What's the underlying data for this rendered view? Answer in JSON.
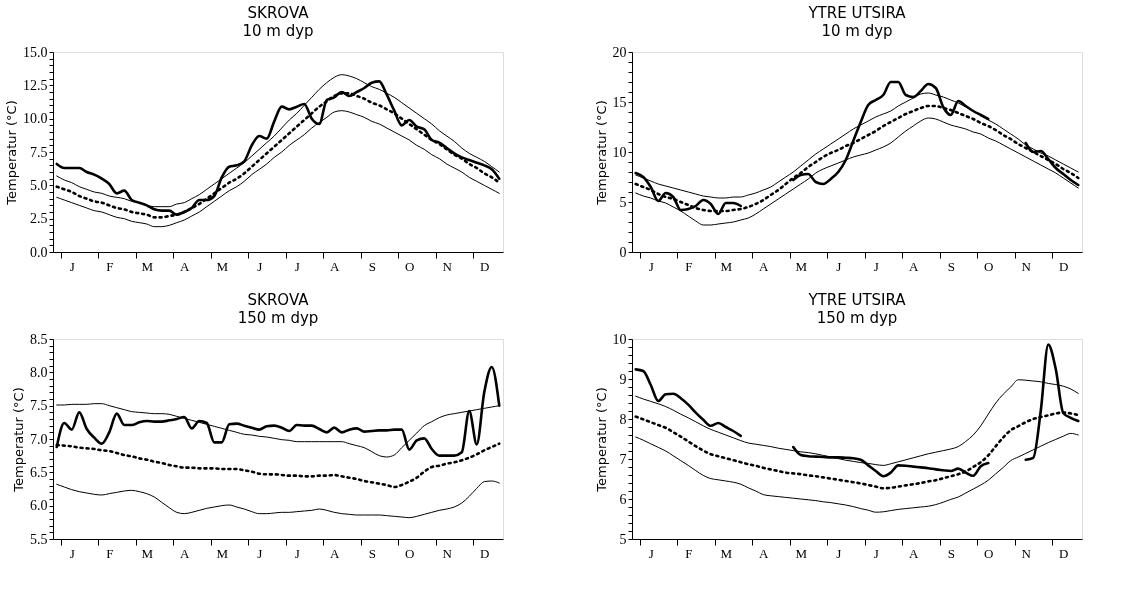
{
  "chart_data": [
    {
      "type": "line",
      "title": "SKROVA",
      "subtitle": "10 m dyp",
      "ylabel": "Temperatur (°C)",
      "grid": false,
      "categories": [
        null,
        null,
        "J",
        null,
        null,
        null,
        null,
        "F",
        null,
        null,
        null,
        null,
        "M",
        null,
        null,
        null,
        null,
        "A",
        null,
        null,
        null,
        null,
        "M",
        null,
        null,
        null,
        null,
        "J",
        null,
        null,
        null,
        null,
        "J",
        null,
        null,
        null,
        null,
        "A",
        null,
        null,
        null,
        null,
        "S",
        null,
        null,
        null,
        null,
        "O",
        null,
        null,
        null,
        null,
        "N",
        null,
        null,
        null,
        null,
        "D",
        null,
        null
      ],
      "ylim": [
        0,
        15
      ],
      "yticks": [
        {
          "value": 0,
          "label": "0.0"
        },
        {
          "value": 0.5,
          "label": null
        },
        {
          "value": 1,
          "label": null
        },
        {
          "value": 1.5,
          "label": null
        },
        {
          "value": 2,
          "label": null
        },
        2.5,
        {
          "value": 3,
          "label": null
        },
        {
          "value": 3.5,
          "label": null
        },
        {
          "value": 4,
          "label": null
        },
        {
          "value": 4.5,
          "label": null
        },
        {
          "value": 5,
          "label": "5.0"
        },
        {
          "value": 5.5,
          "label": null
        },
        {
          "value": 6,
          "label": null
        },
        {
          "value": 6.5,
          "label": null
        },
        {
          "value": 7,
          "label": null
        },
        7.5,
        {
          "value": 8,
          "label": null
        },
        {
          "value": 8.5,
          "label": null
        },
        {
          "value": 9,
          "label": null
        },
        {
          "value": 9.5,
          "label": null
        },
        {
          "value": 10,
          "label": "10.0"
        },
        {
          "value": 10.5,
          "label": null
        },
        {
          "value": 11,
          "label": null
        },
        {
          "value": 11.5,
          "label": null
        },
        {
          "value": 12,
          "label": null
        },
        12.5,
        {
          "value": 13,
          "label": null
        },
        {
          "value": 13.5,
          "label": null
        },
        {
          "value": 14,
          "label": null
        },
        {
          "value": 14.5,
          "label": null
        },
        {
          "value": 15,
          "label": "15.0"
        }
      ],
      "series": [
        {
          "color": "#000000",
          "line_style": "solid",
          "values": [
            6.6,
            6.3,
            6.3,
            6.3,
            6.0,
            5.8,
            5.5,
            5.1,
            4.4,
            4.6,
            3.9,
            3.7,
            3.5,
            3.2,
            3.1,
            3.1,
            2.8,
            3.0,
            3.3,
            3.9,
            3.9,
            4.2,
            5.6,
            6.4,
            6.5,
            6.8,
            8.0,
            8.7,
            8.5,
            9.8,
            10.9,
            10.7,
            10.9,
            11.1,
            10.0,
            9.6,
            11.4,
            11.6,
            12.0,
            11.7,
            12.0,
            12.3,
            12.7,
            12.8,
            11.8,
            10.6,
            9.5,
            9.9,
            9.4,
            9.2,
            8.4,
            8.2,
            7.8,
            7.4,
            7.1,
            6.9,
            6.7,
            6.5,
            6.2,
            5.5
          ]
        },
        {
          "color": "#000000",
          "line_style": "solid",
          "values": [
            5.7,
            5.4,
            5.2,
            4.9,
            4.7,
            4.5,
            4.4,
            4.2,
            4.1,
            4.0,
            3.8,
            3.7,
            3.5,
            3.4,
            3.4,
            3.4,
            3.6,
            3.7,
            4.0,
            4.3,
            4.7,
            5.1,
            5.5,
            5.9,
            6.3,
            6.7,
            7.2,
            7.7,
            8.2,
            8.7,
            9.3,
            9.9,
            10.4,
            11.0,
            11.6,
            12.2,
            12.7,
            13.1,
            13.3,
            13.2,
            13.0,
            12.7,
            12.4,
            12.2,
            11.9,
            11.6,
            11.2,
            10.8,
            10.4,
            10.0,
            9.6,
            9.1,
            8.7,
            8.3,
            7.8,
            7.4,
            7.1,
            6.8,
            6.4,
            6.0
          ]
        },
        {
          "color": "#000000",
          "line_style": "dotted",
          "values": [
            4.9,
            4.7,
            4.5,
            4.2,
            4.0,
            3.8,
            3.7,
            3.5,
            3.3,
            3.2,
            3.0,
            2.9,
            2.8,
            2.6,
            2.6,
            2.7,
            2.8,
            3.0,
            3.3,
            3.6,
            4.0,
            4.4,
            4.8,
            5.2,
            5.5,
            5.9,
            6.4,
            6.9,
            7.4,
            7.9,
            8.4,
            8.9,
            9.4,
            9.9,
            10.4,
            10.9,
            11.3,
            11.7,
            11.9,
            11.9,
            11.7,
            11.5,
            11.2,
            11.0,
            10.7,
            10.4,
            10.0,
            9.6,
            9.2,
            8.8,
            8.4,
            8.1,
            7.7,
            7.3,
            7.0,
            6.6,
            6.3,
            5.9,
            5.6,
            5.2
          ]
        },
        {
          "color": "#000000",
          "line_style": "solid",
          "values": [
            4.1,
            3.9,
            3.7,
            3.5,
            3.3,
            3.1,
            3.0,
            2.8,
            2.6,
            2.5,
            2.3,
            2.2,
            2.1,
            1.9,
            1.9,
            2.0,
            2.2,
            2.4,
            2.7,
            3.0,
            3.4,
            3.8,
            4.2,
            4.6,
            4.9,
            5.3,
            5.8,
            6.2,
            6.6,
            7.1,
            7.5,
            8.0,
            8.4,
            8.8,
            9.3,
            9.7,
            10.1,
            10.5,
            10.6,
            10.5,
            10.3,
            10.1,
            9.8,
            9.6,
            9.3,
            9.0,
            8.7,
            8.4,
            8.0,
            7.7,
            7.3,
            7.0,
            6.6,
            6.3,
            6.0,
            5.6,
            5.3,
            5.0,
            4.7,
            4.4
          ]
        }
      ]
    },
    {
      "type": "line",
      "title": "YTRE UTSIRA",
      "subtitle": "10 m dyp",
      "ylabel": "Temperatur (°C)",
      "grid": false,
      "categories": [
        null,
        null,
        "J",
        null,
        null,
        null,
        null,
        "F",
        null,
        null,
        null,
        null,
        "M",
        null,
        null,
        null,
        null,
        "A",
        null,
        null,
        null,
        null,
        "M",
        null,
        null,
        null,
        null,
        "J",
        null,
        null,
        null,
        null,
        "J",
        null,
        null,
        null,
        null,
        "A",
        null,
        null,
        null,
        null,
        "S",
        null,
        null,
        null,
        null,
        "O",
        null,
        null,
        null,
        null,
        "N",
        null,
        null,
        null,
        null,
        "D",
        null,
        null
      ],
      "ylim": [
        0,
        20
      ],
      "yticks": [
        0,
        {
          "value": 1,
          "label": null
        },
        {
          "value": 2,
          "label": null
        },
        {
          "value": 3,
          "label": null
        },
        {
          "value": 4,
          "label": null
        },
        5,
        {
          "value": 6,
          "label": null
        },
        {
          "value": 7,
          "label": null
        },
        {
          "value": 8,
          "label": null
        },
        {
          "value": 9,
          "label": null
        },
        10,
        {
          "value": 11,
          "label": null
        },
        {
          "value": 12,
          "label": null
        },
        {
          "value": 13,
          "label": null
        },
        {
          "value": 14,
          "label": null
        },
        15,
        {
          "value": 16,
          "label": null
        },
        {
          "value": 17,
          "label": null
        },
        {
          "value": 18,
          "label": null
        },
        {
          "value": 19,
          "label": null
        },
        20
      ],
      "series": [
        {
          "color": "#000000",
          "line_style": "solid",
          "values": [
            7.9,
            7.5,
            6.5,
            5.1,
            5.9,
            5.5,
            4.2,
            4.3,
            4.6,
            5.2,
            4.8,
            3.8,
            4.9,
            4.9,
            4.6,
            null,
            null,
            null,
            null,
            null,
            null,
            7.2,
            7.7,
            7.8,
            7.0,
            6.8,
            7.3,
            8.0,
            9.2,
            11.1,
            13.0,
            14.7,
            15.2,
            15.7,
            17.0,
            17.0,
            15.7,
            15.5,
            16.1,
            16.8,
            16.4,
            14.5,
            13.7,
            15.1,
            14.6,
            14.1,
            13.7,
            13.3,
            null,
            null,
            null,
            null,
            10.9,
            10.0,
            10.1,
            9.3,
            8.4,
            7.8,
            7.2,
            6.7
          ]
        },
        {
          "color": "#000000",
          "line_style": "solid",
          "values": [
            7.7,
            7.4,
            7.1,
            6.8,
            6.6,
            6.4,
            6.2,
            6.0,
            5.8,
            5.6,
            5.5,
            5.4,
            5.4,
            5.5,
            5.5,
            5.7,
            5.9,
            6.2,
            6.5,
            7.0,
            7.5,
            8.0,
            8.6,
            9.2,
            9.8,
            10.3,
            10.8,
            11.3,
            11.8,
            12.3,
            12.7,
            13.1,
            13.5,
            13.8,
            14.1,
            14.6,
            15.0,
            15.4,
            15.8,
            15.9,
            15.7,
            15.5,
            15.2,
            14.9,
            14.5,
            14.1,
            13.7,
            13.2,
            12.8,
            12.3,
            11.8,
            11.3,
            10.7,
            10.3,
            9.9,
            9.6,
            9.2,
            8.8,
            8.4,
            8.0
          ]
        },
        {
          "color": "#000000",
          "line_style": "dotted",
          "values": [
            6.8,
            6.5,
            6.2,
            5.8,
            5.5,
            5.3,
            5.0,
            4.7,
            4.4,
            4.2,
            4.1,
            4.1,
            4.1,
            4.2,
            4.3,
            4.5,
            4.8,
            5.2,
            5.7,
            6.2,
            6.8,
            7.4,
            7.9,
            8.5,
            9.0,
            9.5,
            9.9,
            10.2,
            10.6,
            10.9,
            11.3,
            11.7,
            12.1,
            12.6,
            13.0,
            13.4,
            13.8,
            14.1,
            14.4,
            14.6,
            14.6,
            14.4,
            14.2,
            13.9,
            13.6,
            13.3,
            12.9,
            12.6,
            12.2,
            11.7,
            11.3,
            10.8,
            10.4,
            10.0,
            9.6,
            9.2,
            8.8,
            8.3,
            7.9,
            7.4
          ]
        },
        {
          "color": "#000000",
          "line_style": "solid",
          "values": [
            5.9,
            5.6,
            5.4,
            5.1,
            4.9,
            4.5,
            4.1,
            3.6,
            3.1,
            2.7,
            2.7,
            2.8,
            2.9,
            3.0,
            3.2,
            3.4,
            3.8,
            4.3,
            4.8,
            5.3,
            5.8,
            6.3,
            6.8,
            7.3,
            7.9,
            8.3,
            8.6,
            8.9,
            9.2,
            9.5,
            9.7,
            9.9,
            10.2,
            10.5,
            10.9,
            11.5,
            12.1,
            12.6,
            13.1,
            13.4,
            13.3,
            13.0,
            12.7,
            12.5,
            12.3,
            12.0,
            11.8,
            11.4,
            11.1,
            10.7,
            10.3,
            9.9,
            9.5,
            9.1,
            8.7,
            8.3,
            7.9,
            7.4,
            6.9,
            6.4
          ]
        }
      ]
    },
    {
      "type": "line",
      "title": "SKROVA",
      "subtitle": "150 m dyp",
      "ylabel": "Temperatur (°C)",
      "grid": false,
      "categories": [
        null,
        null,
        "J",
        null,
        null,
        null,
        null,
        "F",
        null,
        null,
        null,
        null,
        "M",
        null,
        null,
        null,
        null,
        "A",
        null,
        null,
        null,
        null,
        "M",
        null,
        null,
        null,
        null,
        "J",
        null,
        null,
        null,
        null,
        "J",
        null,
        null,
        null,
        null,
        "A",
        null,
        null,
        null,
        null,
        "S",
        null,
        null,
        null,
        null,
        "O",
        null,
        null,
        null,
        null,
        "N",
        null,
        null,
        null,
        null,
        "D",
        null,
        null
      ],
      "ylim": [
        5.5,
        8.5
      ],
      "yticks": [
        5.5,
        {
          "value": 5.6,
          "label": null
        },
        {
          "value": 5.7,
          "label": null
        },
        {
          "value": 5.8,
          "label": null
        },
        {
          "value": 5.9,
          "label": null
        },
        {
          "value": 6,
          "label": "6.0"
        },
        {
          "value": 6.1,
          "label": null
        },
        {
          "value": 6.2,
          "label": null
        },
        {
          "value": 6.3,
          "label": null
        },
        {
          "value": 6.4,
          "label": null
        },
        6.5,
        {
          "value": 6.6,
          "label": null
        },
        {
          "value": 6.7,
          "label": null
        },
        {
          "value": 6.8,
          "label": null
        },
        {
          "value": 6.9,
          "label": null
        },
        {
          "value": 7,
          "label": "7.0"
        },
        {
          "value": 7.1,
          "label": null
        },
        {
          "value": 7.2,
          "label": null
        },
        {
          "value": 7.3,
          "label": null
        },
        {
          "value": 7.4,
          "label": null
        },
        7.5,
        {
          "value": 7.6,
          "label": null
        },
        {
          "value": 7.7,
          "label": null
        },
        {
          "value": 7.8,
          "label": null
        },
        {
          "value": 7.9,
          "label": null
        },
        {
          "value": 8,
          "label": "8.0"
        },
        {
          "value": 8.1,
          "label": null
        },
        {
          "value": 8.2,
          "label": null
        },
        {
          "value": 8.3,
          "label": null
        },
        {
          "value": 8.4,
          "label": null
        },
        8.5
      ],
      "series": [
        {
          "color": "#000000",
          "line_style": "solid",
          "values": [
            6.88,
            7.24,
            7.14,
            7.4,
            7.15,
            7.02,
            6.93,
            7.1,
            7.38,
            7.21,
            7.21,
            7.25,
            7.27,
            7.26,
            7.26,
            7.28,
            7.3,
            7.33,
            7.16,
            7.27,
            7.24,
            6.95,
            6.95,
            7.22,
            7.23,
            7.2,
            7.17,
            7.14,
            7.19,
            7.2,
            7.17,
            7.12,
            7.21,
            7.2,
            7.2,
            7.15,
            7.1,
            7.17,
            7.1,
            7.14,
            7.16,
            7.11,
            7.12,
            7.13,
            7.13,
            7.14,
            7.14,
            6.84,
            6.98,
            7.01,
            6.85,
            6.75,
            6.75,
            6.75,
            6.8,
            7.42,
            6.92,
            7.7,
            8.08,
            7.5
          ]
        },
        {
          "color": "#000000",
          "line_style": "solid",
          "values": [
            7.51,
            7.51,
            7.52,
            7.52,
            7.52,
            7.53,
            7.53,
            7.5,
            7.47,
            7.44,
            7.41,
            7.4,
            7.39,
            7.38,
            7.38,
            7.37,
            7.34,
            7.31,
            7.28,
            7.25,
            7.22,
            7.19,
            7.16,
            7.13,
            7.1,
            7.07,
            7.06,
            7.04,
            7.03,
            7.01,
            6.99,
            6.98,
            6.96,
            6.96,
            6.96,
            6.96,
            6.96,
            6.96,
            6.96,
            6.93,
            6.9,
            6.87,
            6.81,
            6.75,
            6.73,
            6.76,
            6.87,
            6.98,
            7.09,
            7.2,
            7.26,
            7.32,
            7.36,
            7.38,
            7.4,
            7.42,
            7.44,
            7.46,
            7.48,
            7.5
          ]
        },
        {
          "color": "#000000",
          "line_style": "dotted",
          "values": [
            6.91,
            6.9,
            6.89,
            6.87,
            6.86,
            6.85,
            6.83,
            6.82,
            6.79,
            6.76,
            6.74,
            6.71,
            6.69,
            6.66,
            6.64,
            6.61,
            6.59,
            6.57,
            6.57,
            6.56,
            6.56,
            6.56,
            6.55,
            6.55,
            6.55,
            6.53,
            6.51,
            6.48,
            6.47,
            6.47,
            6.46,
            6.45,
            6.45,
            6.44,
            6.44,
            6.45,
            6.45,
            6.46,
            6.44,
            6.42,
            6.4,
            6.37,
            6.35,
            6.33,
            6.31,
            6.28,
            6.31,
            6.36,
            6.42,
            6.51,
            6.58,
            6.6,
            6.63,
            6.65,
            6.68,
            6.72,
            6.77,
            6.83,
            6.88,
            6.93
          ]
        },
        {
          "color": "#000000",
          "line_style": "solid",
          "values": [
            6.32,
            6.28,
            6.24,
            6.21,
            6.19,
            6.17,
            6.16,
            6.18,
            6.2,
            6.22,
            6.23,
            6.21,
            6.18,
            6.13,
            6.05,
            5.97,
            5.9,
            5.88,
            5.9,
            5.93,
            5.96,
            5.98,
            6.0,
            6.01,
            5.98,
            5.95,
            5.91,
            5.88,
            5.88,
            5.89,
            5.9,
            5.9,
            5.91,
            5.92,
            5.93,
            5.95,
            5.93,
            5.9,
            5.88,
            5.87,
            5.86,
            5.86,
            5.86,
            5.86,
            5.85,
            5.84,
            5.83,
            5.82,
            5.84,
            5.87,
            5.9,
            5.93,
            5.95,
            5.98,
            6.04,
            6.14,
            6.26,
            6.36,
            6.37,
            6.34
          ]
        }
      ]
    },
    {
      "type": "line",
      "title": "YTRE UTSIRA",
      "subtitle": "150 m dyp",
      "ylabel": "Temperatur (°C)",
      "grid": false,
      "categories": [
        null,
        null,
        "J",
        null,
        null,
        null,
        null,
        "F",
        null,
        null,
        null,
        null,
        "M",
        null,
        null,
        null,
        null,
        "A",
        null,
        null,
        null,
        null,
        "M",
        null,
        null,
        null,
        null,
        "J",
        null,
        null,
        null,
        null,
        "J",
        null,
        null,
        null,
        null,
        "A",
        null,
        null,
        null,
        null,
        "S",
        null,
        null,
        null,
        null,
        "O",
        null,
        null,
        null,
        null,
        "N",
        null,
        null,
        null,
        null,
        "D",
        null,
        null
      ],
      "ylim": [
        5,
        10
      ],
      "yticks": [
        5,
        {
          "value": 5.2,
          "label": null
        },
        {
          "value": 5.4,
          "label": null
        },
        {
          "value": 5.6,
          "label": null
        },
        {
          "value": 5.8,
          "label": null
        },
        6,
        {
          "value": 6.2,
          "label": null
        },
        {
          "value": 6.4,
          "label": null
        },
        {
          "value": 6.6,
          "label": null
        },
        {
          "value": 6.8,
          "label": null
        },
        7,
        {
          "value": 7.2,
          "label": null
        },
        {
          "value": 7.4,
          "label": null
        },
        {
          "value": 7.6,
          "label": null
        },
        {
          "value": 7.8,
          "label": null
        },
        8,
        {
          "value": 8.2,
          "label": null
        },
        {
          "value": 8.4,
          "label": null
        },
        {
          "value": 8.6,
          "label": null
        },
        {
          "value": 8.8,
          "label": null
        },
        9,
        {
          "value": 9.2,
          "label": null
        },
        {
          "value": 9.4,
          "label": null
        },
        {
          "value": 9.6,
          "label": null
        },
        {
          "value": 9.8,
          "label": null
        },
        10
      ],
      "series": [
        {
          "color": "#000000",
          "line_style": "solid",
          "values": [
            9.24,
            9.2,
            8.85,
            8.45,
            8.62,
            8.63,
            8.52,
            8.36,
            8.16,
            7.98,
            7.83,
            7.9,
            7.8,
            7.7,
            7.58,
            null,
            null,
            null,
            null,
            null,
            null,
            7.3,
            7.1,
            7.07,
            7.06,
            7.05,
            7.04,
            7.04,
            7.03,
            7.02,
            6.98,
            6.84,
            6.7,
            6.57,
            6.66,
            6.84,
            6.83,
            6.81,
            6.79,
            6.77,
            6.74,
            6.72,
            6.7,
            6.76,
            6.66,
            6.58,
            6.82,
            6.9,
            null,
            null,
            null,
            null,
            6.98,
            7.03,
            8.2,
            9.86,
            9.25,
            8.15,
            8.03,
            7.95
          ]
        },
        {
          "color": "#000000",
          "line_style": "solid",
          "values": [
            8.57,
            8.5,
            8.44,
            8.38,
            8.31,
            8.22,
            8.12,
            8.03,
            7.93,
            7.83,
            7.74,
            7.67,
            7.6,
            7.53,
            7.46,
            7.4,
            7.37,
            7.34,
            7.31,
            7.27,
            7.24,
            7.21,
            7.18,
            7.16,
            7.13,
            7.09,
            7.05,
            7.01,
            6.97,
            6.94,
            6.91,
            6.89,
            6.86,
            6.84,
            6.88,
            6.93,
            6.98,
            7.03,
            7.08,
            7.13,
            7.17,
            7.21,
            7.25,
            7.31,
            7.44,
            7.6,
            7.83,
            8.12,
            8.4,
            8.62,
            8.8,
            8.98,
            8.97,
            8.95,
            8.93,
            8.89,
            8.86,
            8.82,
            8.75,
            8.64
          ]
        },
        {
          "color": "#000000",
          "line_style": "dotted",
          "values": [
            8.06,
            7.99,
            7.92,
            7.85,
            7.78,
            7.67,
            7.56,
            7.44,
            7.32,
            7.21,
            7.12,
            7.07,
            7.02,
            6.97,
            6.92,
            6.87,
            6.83,
            6.78,
            6.74,
            6.7,
            6.66,
            6.64,
            6.62,
            6.59,
            6.57,
            6.54,
            6.51,
            6.48,
            6.45,
            6.42,
            6.39,
            6.35,
            6.31,
            6.27,
            6.28,
            6.31,
            6.34,
            6.37,
            6.4,
            6.44,
            6.47,
            6.52,
            6.57,
            6.62,
            6.69,
            6.8,
            6.92,
            7.09,
            7.32,
            7.54,
            7.72,
            7.82,
            7.92,
            8.0,
            8.05,
            8.09,
            8.14,
            8.16,
            8.14,
            8.1
          ]
        },
        {
          "color": "#000000",
          "line_style": "solid",
          "values": [
            7.55,
            7.47,
            7.38,
            7.29,
            7.2,
            7.08,
            6.96,
            6.84,
            6.71,
            6.59,
            6.51,
            6.48,
            6.45,
            6.42,
            6.37,
            6.28,
            6.2,
            6.11,
            6.08,
            6.06,
            6.04,
            6.02,
            6.0,
            5.98,
            5.96,
            5.93,
            5.91,
            5.88,
            5.85,
            5.81,
            5.76,
            5.72,
            5.67,
            5.68,
            5.71,
            5.74,
            5.76,
            5.78,
            5.8,
            5.82,
            5.86,
            5.92,
            5.99,
            6.05,
            6.15,
            6.25,
            6.35,
            6.47,
            6.63,
            6.79,
            6.96,
            7.05,
            7.14,
            7.23,
            7.32,
            7.41,
            7.49,
            7.57,
            7.64,
            7.6
          ]
        }
      ]
    }
  ]
}
